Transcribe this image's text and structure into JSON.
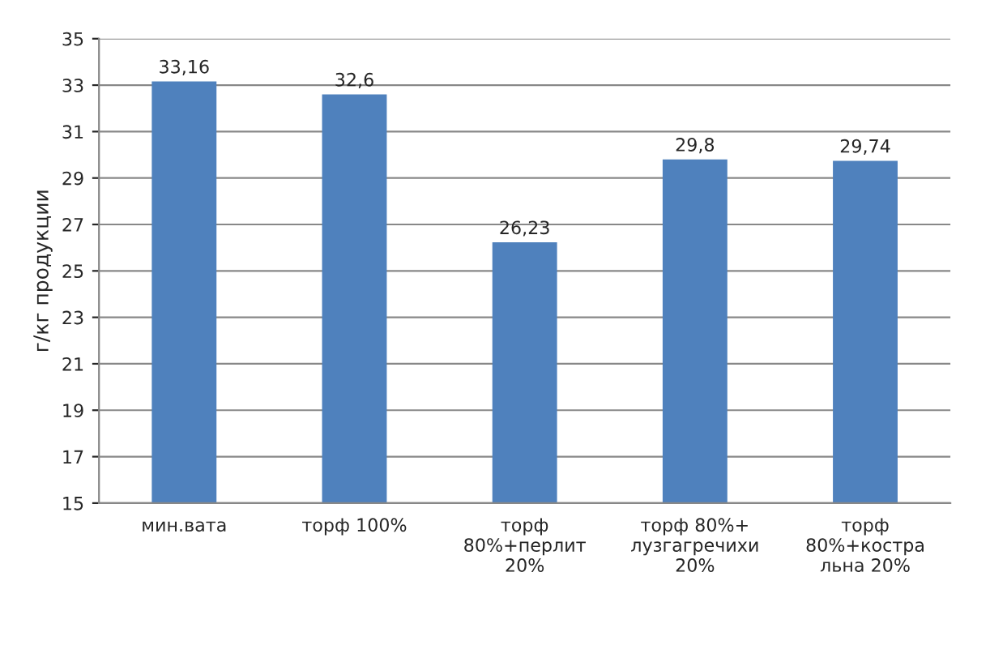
{
  "chart_data": {
    "type": "bar",
    "ylabel": "г/кг продукции",
    "categories": [
      "мин.вата",
      "торф 100%",
      "торф\n80%+перлит\n20%",
      "торф 80%+\nлузгагречихи\n20%",
      "торф\n80%+костра\nльна 20%"
    ],
    "values": [
      33.16,
      32.6,
      26.23,
      29.8,
      29.74
    ],
    "value_labels": [
      "33,16",
      "32,6",
      "26,23",
      "29,8",
      "29,74"
    ],
    "color": "#4f81bd",
    "ylim": [
      15,
      35
    ],
    "yticks": [
      15,
      17,
      19,
      21,
      23,
      25,
      27,
      29,
      31,
      33,
      35
    ],
    "grid": "y"
  }
}
